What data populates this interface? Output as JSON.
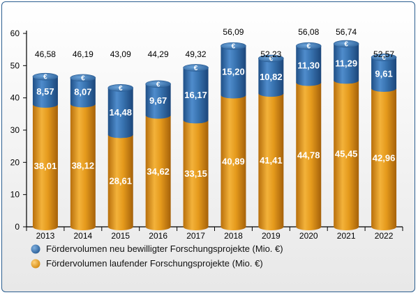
{
  "chart_data": {
    "type": "bar",
    "stacked": true,
    "categories": [
      "2013",
      "2014",
      "2015",
      "2016",
      "2017",
      "2018",
      "2019",
      "2020",
      "2021",
      "2022"
    ],
    "series": [
      {
        "name": "Fördervolumen laufender Forschungsprojekte (Mio. €)",
        "values": [
          38.01,
          38.12,
          28.61,
          34.62,
          33.15,
          40.89,
          41.41,
          44.78,
          45.45,
          42.96
        ],
        "labels": [
          "38,01",
          "38,12",
          "28,61",
          "34,62",
          "33,15",
          "40,89",
          "41,41",
          "44,78",
          "45,45",
          "42,96"
        ],
        "color": "#e8a020"
      },
      {
        "name": "Fördervolumen neu bewilligter Forschungsprojekte (Mio. €)",
        "values": [
          8.57,
          8.07,
          14.48,
          9.67,
          16.17,
          15.2,
          10.82,
          11.3,
          11.29,
          9.61
        ],
        "labels": [
          "8,57",
          "8,07",
          "14,48",
          "9,67",
          "16,17",
          "15,20",
          "10,82",
          "11,30",
          "11,29",
          "9,61"
        ],
        "color": "#3a78b5"
      }
    ],
    "totals": [
      46.58,
      46.19,
      43.09,
      44.29,
      49.32,
      56.09,
      52.23,
      56.08,
      56.74,
      52.57
    ],
    "total_labels": [
      "46,58",
      "46,19",
      "43,09",
      "44,29",
      "49,32",
      "56,09",
      "52,23",
      "56,08",
      "56,74",
      "52,57"
    ],
    "yticks": [
      0,
      10,
      20,
      30,
      40,
      50,
      60
    ],
    "ylim": [
      0,
      60
    ],
    "cap_symbol": "€",
    "legend": [
      {
        "label": "Fördervolumen neu bewilligter Forschungsprojekte (Mio. €)",
        "color": "#3a78b5"
      },
      {
        "label": "Fördervolumen laufender Forschungsprojekte (Mio. €)",
        "color": "#e8a020"
      }
    ]
  }
}
